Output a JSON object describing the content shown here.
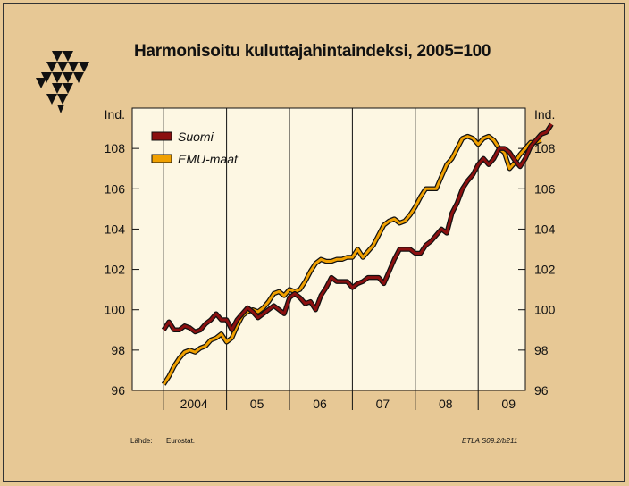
{
  "title": "Harmonisoitu kuluttajahintaindeksi, 2005=100",
  "source_label": "Lähde:",
  "source_value": "Eurostat.",
  "code": "ETLA S09.2/b211",
  "colors": {
    "suomi": "#8b1010",
    "emu": "#f0a000",
    "background": "#e7c895",
    "plot_bg": "#fdf7e3"
  },
  "chart_data": {
    "type": "line",
    "ylabel_left": "Ind.",
    "ylabel_right": "Ind.",
    "ylim": [
      96,
      110
    ],
    "yticks": [
      96,
      98,
      100,
      102,
      104,
      106,
      108
    ],
    "x_start": "2004-01",
    "xlim_years": [
      2003.5,
      2009.75
    ],
    "xtick_labels": [
      {
        "year": 2004,
        "label": "2004"
      },
      {
        "year": 2005,
        "label": "05"
      },
      {
        "year": 2006,
        "label": "06"
      },
      {
        "year": 2007,
        "label": "07"
      },
      {
        "year": 2008,
        "label": "08"
      },
      {
        "year": 2009,
        "label": "09"
      }
    ],
    "legend_position": "top-left",
    "series": [
      {
        "name": "Suomi",
        "color": "#8b1010",
        "values": [
          99.0,
          99.4,
          99.0,
          99.0,
          99.2,
          99.1,
          98.9,
          99.0,
          99.3,
          99.5,
          99.8,
          99.5,
          99.5,
          99.0,
          99.5,
          99.8,
          100.1,
          99.9,
          99.6,
          99.8,
          100.0,
          100.2,
          100.0,
          99.8,
          100.6,
          100.8,
          100.6,
          100.3,
          100.4,
          100.0,
          100.7,
          101.1,
          101.6,
          101.4,
          101.4,
          101.4,
          101.1,
          101.3,
          101.4,
          101.6,
          101.6,
          101.6,
          101.3,
          101.9,
          102.5,
          103.0,
          103.0,
          103.0,
          102.8,
          102.8,
          103.2,
          103.4,
          103.7,
          104.0,
          103.8,
          104.8,
          105.3,
          106.0,
          106.4,
          106.7,
          107.2,
          107.5,
          107.2,
          107.5,
          108.0,
          108.0,
          107.8,
          107.4,
          107.1,
          107.5,
          108.1,
          108.4,
          108.7,
          108.8,
          109.2
        ]
      },
      {
        "name": "EMU-maat",
        "color": "#f0a000",
        "values": [
          96.3,
          96.7,
          97.2,
          97.6,
          97.9,
          98.0,
          97.9,
          98.1,
          98.2,
          98.5,
          98.6,
          98.8,
          98.4,
          98.6,
          99.2,
          99.7,
          99.9,
          100.0,
          99.9,
          100.1,
          100.4,
          100.8,
          100.9,
          100.7,
          101.0,
          100.9,
          101.0,
          101.4,
          101.9,
          102.3,
          102.5,
          102.4,
          102.4,
          102.5,
          102.5,
          102.6,
          102.6,
          103.0,
          102.6,
          102.9,
          103.2,
          103.7,
          104.2,
          104.4,
          104.5,
          104.3,
          104.4,
          104.7,
          105.1,
          105.6,
          106.0,
          106.0,
          106.0,
          106.6,
          107.2,
          107.5,
          108.0,
          108.5,
          108.6,
          108.5,
          108.2,
          108.5,
          108.6,
          108.4,
          108.0,
          107.8,
          107.0,
          107.3,
          107.7,
          108.0,
          108.3,
          108.3,
          108.4
        ]
      }
    ]
  }
}
